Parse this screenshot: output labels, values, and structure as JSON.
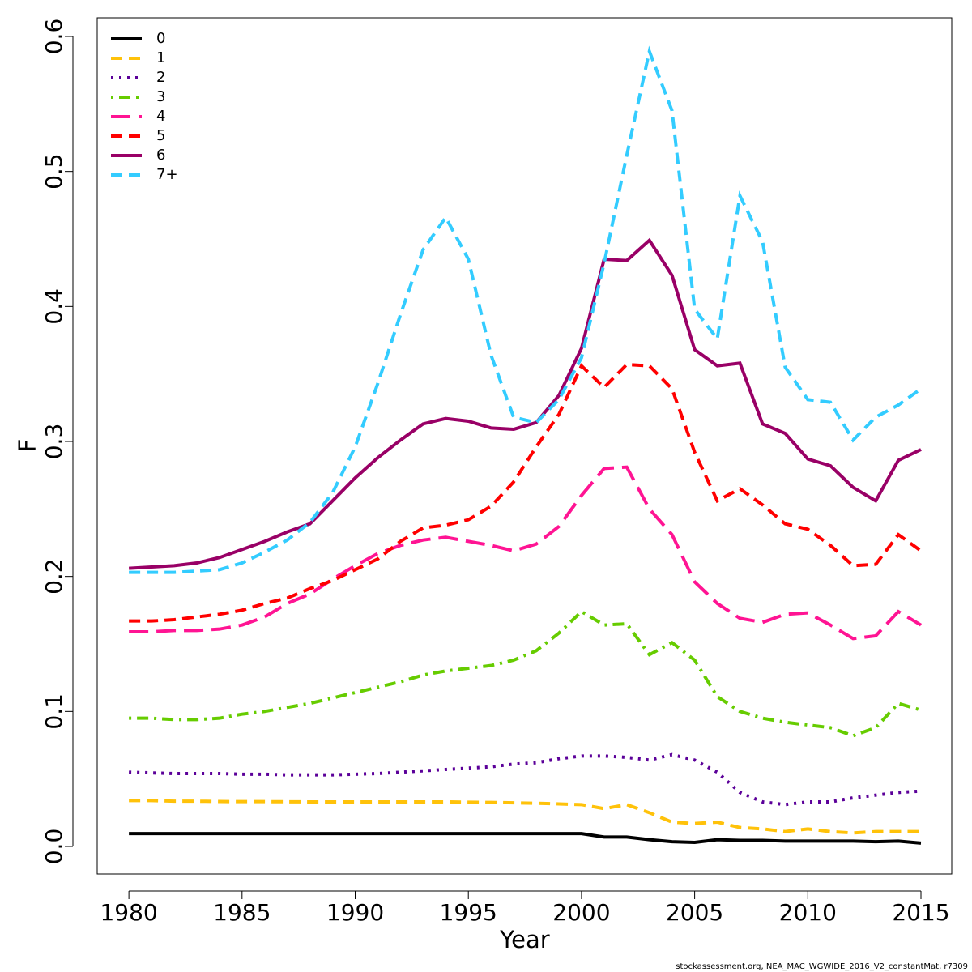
{
  "chart_data": {
    "type": "line",
    "x_label": "Year",
    "y_label": "F",
    "footnote": "stockassessment.org, NEA_MAC_WGWIDE_2016_V2_constantMat, r7309",
    "x": [
      1980,
      1981,
      1982,
      1983,
      1984,
      1985,
      1986,
      1987,
      1988,
      1989,
      1990,
      1991,
      1992,
      1993,
      1994,
      1995,
      1996,
      1997,
      1998,
      1999,
      2000,
      2001,
      2002,
      2003,
      2004,
      2005,
      2006,
      2007,
      2008,
      2009,
      2010,
      2011,
      2012,
      2013,
      2014,
      2015
    ],
    "xlim": [
      1978.6,
      2016.36
    ],
    "xticks": [
      1980,
      1985,
      1990,
      1995,
      2000,
      2005,
      2010,
      2015
    ],
    "ylim": [
      -0.0204,
      0.6138
    ],
    "yticks": [
      {
        "value": 0,
        "label": "0.0"
      },
      0.1,
      0.2,
      0.3,
      0.4,
      0.5,
      0.6
    ],
    "legend": "top-left",
    "series": [
      {
        "name": "0",
        "color": "#000000",
        "dash": "solid",
        "values": [
          0.0095,
          0.0095,
          0.0095,
          0.0095,
          0.0095,
          0.0095,
          0.0095,
          0.0095,
          0.0095,
          0.0095,
          0.0095,
          0.0095,
          0.0095,
          0.0095,
          0.0095,
          0.0095,
          0.0095,
          0.0095,
          0.0095,
          0.0095,
          0.0095,
          0.007,
          0.007,
          0.005,
          0.0035,
          0.003,
          0.005,
          0.0045,
          0.0045,
          0.004,
          0.004,
          0.004,
          0.004,
          0.0035,
          0.004,
          0.0025
        ]
      },
      {
        "name": "1",
        "color": "#FFC20A",
        "dash": "dashed",
        "values": [
          0.034,
          0.034,
          0.0335,
          0.0335,
          0.0333,
          0.0332,
          0.0332,
          0.0331,
          0.033,
          0.033,
          0.033,
          0.033,
          0.033,
          0.033,
          0.033,
          0.0328,
          0.0326,
          0.0323,
          0.032,
          0.0315,
          0.031,
          0.028,
          0.031,
          0.025,
          0.018,
          0.017,
          0.018,
          0.014,
          0.013,
          0.011,
          0.013,
          0.011,
          0.01,
          0.011,
          0.011,
          0.011
        ]
      },
      {
        "name": "2",
        "color": "#5B0099",
        "dash": "dotted",
        "values": [
          0.055,
          0.0545,
          0.054,
          0.054,
          0.054,
          0.0535,
          0.0535,
          0.053,
          0.053,
          0.053,
          0.0535,
          0.054,
          0.055,
          0.056,
          0.057,
          0.058,
          0.059,
          0.061,
          0.062,
          0.065,
          0.067,
          0.067,
          0.066,
          0.064,
          0.068,
          0.064,
          0.055,
          0.04,
          0.033,
          0.031,
          0.033,
          0.033,
          0.036,
          0.038,
          0.04,
          0.041
        ]
      },
      {
        "name": "3",
        "color": "#66CC00",
        "dash": "dotdash",
        "values": [
          0.095,
          0.095,
          0.094,
          0.094,
          0.095,
          0.098,
          0.1,
          0.103,
          0.106,
          0.11,
          0.114,
          0.118,
          0.122,
          0.127,
          0.13,
          0.132,
          0.134,
          0.138,
          0.145,
          0.158,
          0.174,
          0.164,
          0.165,
          0.142,
          0.151,
          0.138,
          0.111,
          0.1,
          0.095,
          0.092,
          0.09,
          0.088,
          0.082,
          0.088,
          0.106,
          0.101
        ]
      },
      {
        "name": "4",
        "color": "#FF1493",
        "dash": "longdash",
        "values": [
          0.159,
          0.159,
          0.16,
          0.16,
          0.161,
          0.164,
          0.17,
          0.18,
          0.187,
          0.198,
          0.208,
          0.217,
          0.223,
          0.227,
          0.229,
          0.226,
          0.223,
          0.219,
          0.224,
          0.237,
          0.26,
          0.28,
          0.281,
          0.25,
          0.231,
          0.196,
          0.18,
          0.169,
          0.166,
          0.172,
          0.173,
          0.164,
          0.154,
          0.156,
          0.174,
          0.164
        ]
      },
      {
        "name": "5",
        "color": "#FF0000",
        "dash": "dashed",
        "values": [
          0.167,
          0.167,
          0.168,
          0.17,
          0.172,
          0.175,
          0.18,
          0.184,
          0.191,
          0.197,
          0.205,
          0.213,
          0.226,
          0.236,
          0.238,
          0.242,
          0.252,
          0.27,
          0.296,
          0.32,
          0.356,
          0.34,
          0.357,
          0.356,
          0.339,
          0.292,
          0.256,
          0.265,
          0.253,
          0.239,
          0.235,
          0.223,
          0.208,
          0.209,
          0.231,
          0.219
        ]
      },
      {
        "name": "6",
        "color": "#990066",
        "dash": "solid",
        "values": [
          0.206,
          0.207,
          0.208,
          0.21,
          0.214,
          0.22,
          0.226,
          0.233,
          0.239,
          0.256,
          0.273,
          0.288,
          0.301,
          0.313,
          0.317,
          0.315,
          0.31,
          0.309,
          0.314,
          0.334,
          0.369,
          0.435,
          0.434,
          0.449,
          0.423,
          0.368,
          0.356,
          0.358,
          0.313,
          0.306,
          0.287,
          0.282,
          0.266,
          0.256,
          0.286,
          0.294
        ]
      },
      {
        "name": "7+",
        "color": "#33CCFF",
        "dash": "dashed",
        "values": [
          0.203,
          0.203,
          0.203,
          0.204,
          0.205,
          0.21,
          0.218,
          0.227,
          0.24,
          0.262,
          0.296,
          0.343,
          0.394,
          0.442,
          0.466,
          0.435,
          0.364,
          0.318,
          0.314,
          0.331,
          0.362,
          0.432,
          0.512,
          0.589,
          0.545,
          0.398,
          0.376,
          0.482,
          0.448,
          0.355,
          0.331,
          0.329,
          0.301,
          0.318,
          0.327,
          0.339
        ]
      }
    ]
  }
}
